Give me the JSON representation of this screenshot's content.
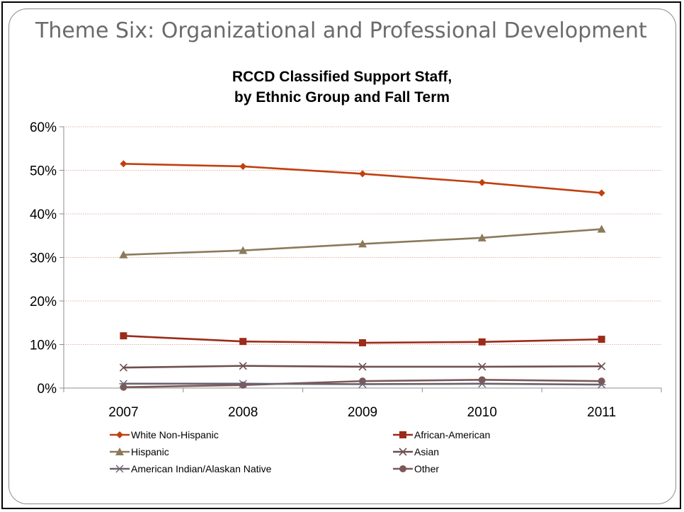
{
  "slide": {
    "title": "Theme Six: Organizational and Professional Development"
  },
  "chart_data": {
    "type": "line",
    "title_lines": [
      "RCCD Classified Support Staff,",
      "by Ethnic Group and Fall Term"
    ],
    "x": [
      "2007",
      "2008",
      "2009",
      "2010",
      "2011"
    ],
    "ylim": [
      0,
      60
    ],
    "y_ticks": [
      0,
      10,
      20,
      30,
      40,
      50,
      60
    ],
    "y_tick_labels": [
      "0%",
      "10%",
      "20%",
      "30%",
      "40%",
      "50%",
      "60%"
    ],
    "grid": true,
    "legend_position": "bottom",
    "series": [
      {
        "name": "White Non-Hispanic",
        "values": [
          51.5,
          50.9,
          49.2,
          47.2,
          44.8
        ],
        "color": "#c0400f",
        "marker": "diamond"
      },
      {
        "name": "African-American",
        "values": [
          12.0,
          10.7,
          10.4,
          10.6,
          11.2
        ],
        "color": "#9b2b1a",
        "marker": "square"
      },
      {
        "name": "Hispanic",
        "values": [
          30.6,
          31.6,
          33.1,
          34.5,
          36.5
        ],
        "color": "#8b7a5a",
        "marker": "triangle"
      },
      {
        "name": "Asian",
        "values": [
          4.7,
          5.1,
          4.9,
          4.9,
          5.0
        ],
        "color": "#6e4e4e",
        "marker": "x"
      },
      {
        "name": "American Indian/Alaskan Native",
        "values": [
          1.0,
          1.0,
          0.9,
          1.0,
          0.8
        ],
        "color": "#6b6170",
        "marker": "asterisk"
      },
      {
        "name": "Other",
        "values": [
          0.2,
          0.7,
          1.6,
          1.9,
          1.6
        ],
        "color": "#7d5858",
        "marker": "circle"
      }
    ]
  }
}
